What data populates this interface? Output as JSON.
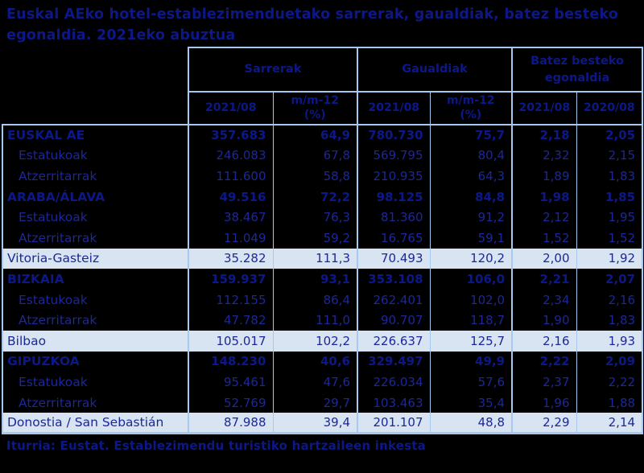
{
  "title": "Euskal AEko hotel-establezimenduetako sarrerak, gaualdiak, batez besteko egonaldia. 2021eko abuztua",
  "source": "Iturria: Eustat. Establezimendu turistiko hartzaileen inkesta",
  "colors": {
    "background": "#000000",
    "border": "#a6c9ef",
    "text": "#1c2798",
    "text_bold": "#0d1888",
    "highlight_row_background": "#d8e4f1"
  },
  "table": {
    "groups": [
      {
        "label": "Sarrerak",
        "columns": [
          "2021/08",
          "m/m-12\n(%)"
        ]
      },
      {
        "label": "Gaualdiak",
        "columns": [
          "2021/08",
          "m/m-12\n(%)"
        ]
      },
      {
        "label": "Batez besteko\negonaldia",
        "columns": [
          "2021/08",
          "2020/08"
        ]
      }
    ],
    "rows": [
      {
        "label": "EUSKAL AE",
        "style": "province",
        "values": [
          "357.683",
          "64,9",
          "780.730",
          "75,7",
          "2,18",
          "2,05"
        ]
      },
      {
        "label": "Estatukoak",
        "style": "sub",
        "values": [
          "246.083",
          "67,8",
          "569.795",
          "80,4",
          "2,32",
          "2,15"
        ]
      },
      {
        "label": "Atzerritarrak",
        "style": "sub",
        "values": [
          "111.600",
          "58,8",
          "210.935",
          "64,3",
          "1,89",
          "1,83"
        ]
      },
      {
        "label": "ARABA/ÁLAVA",
        "style": "province",
        "values": [
          "49.516",
          "72,2",
          "98.125",
          "84,8",
          "1,98",
          "1,85"
        ]
      },
      {
        "label": "Estatukoak",
        "style": "sub",
        "values": [
          "38.467",
          "76,3",
          "81.360",
          "91,2",
          "2,12",
          "1,95"
        ]
      },
      {
        "label": "Atzerritarrak",
        "style": "sub",
        "values": [
          "11.049",
          "59,2",
          "16.765",
          "59,1",
          "1,52",
          "1,52"
        ]
      },
      {
        "label": "Vitoria-Gasteiz",
        "style": "city",
        "values": [
          "35.282",
          "111,3",
          "70.493",
          "120,2",
          "2,00",
          "1,92"
        ]
      },
      {
        "label": "BIZKAIA",
        "style": "province",
        "values": [
          "159.937",
          "93,1",
          "353.108",
          "106,0",
          "2,21",
          "2,07"
        ]
      },
      {
        "label": "Estatukoak",
        "style": "sub",
        "values": [
          "112.155",
          "86,4",
          "262.401",
          "102,0",
          "2,34",
          "2,16"
        ]
      },
      {
        "label": "Atzerritarrak",
        "style": "sub",
        "values": [
          "47.782",
          "111,0",
          "90.707",
          "118,7",
          "1,90",
          "1,83"
        ]
      },
      {
        "label": "Bilbao",
        "style": "city",
        "values": [
          "105.017",
          "102,2",
          "226.637",
          "125,7",
          "2,16",
          "1,93"
        ]
      },
      {
        "label": "GIPUZKOA",
        "style": "province",
        "values": [
          "148.230",
          "40,6",
          "329.497",
          "49,9",
          "2,22",
          "2,09"
        ]
      },
      {
        "label": "Estatukoak",
        "style": "sub",
        "values": [
          "95.461",
          "47,6",
          "226.034",
          "57,6",
          "2,37",
          "2,22"
        ]
      },
      {
        "label": "Atzerritarrak",
        "style": "sub",
        "values": [
          "52.769",
          "29,7",
          "103.463",
          "35,4",
          "1,96",
          "1,88"
        ]
      },
      {
        "label": "Donostia / San Sebastián",
        "style": "city",
        "values": [
          "87.988",
          "39,4",
          "201.107",
          "48,8",
          "2,29",
          "2,14"
        ]
      }
    ]
  }
}
